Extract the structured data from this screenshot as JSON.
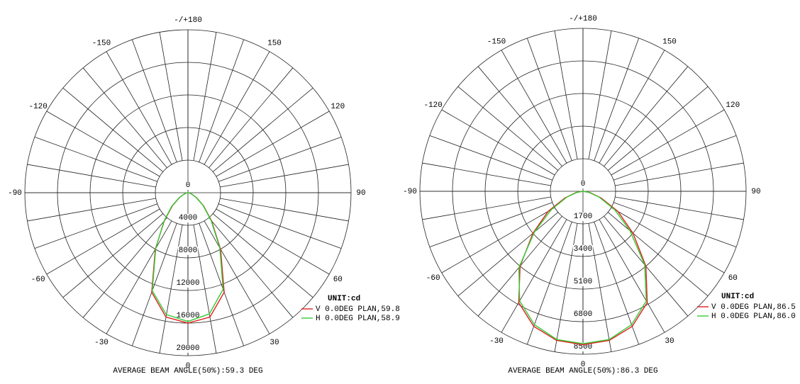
{
  "chart_data": [
    {
      "type": "polar",
      "x": [
        -90,
        -80,
        -70,
        -60,
        -50,
        -40,
        -30,
        -20,
        -10,
        0,
        10,
        20,
        30,
        40,
        50,
        60,
        70,
        80,
        90
      ],
      "series": [
        {
          "name": "V 0.0DEG PLAN,59.8",
          "color": "#e02020",
          "values": [
            0,
            150,
            500,
            1200,
            2500,
            4500,
            8000,
            13000,
            15500,
            16000,
            15500,
            13000,
            8000,
            4500,
            2500,
            1200,
            500,
            150,
            0
          ]
        },
        {
          "name": "H 0.0DEG PLAN,58.9",
          "color": "#33cc33",
          "values": [
            0,
            160,
            550,
            1300,
            2600,
            4600,
            7900,
            12800,
            15200,
            15800,
            15100,
            12600,
            7800,
            4400,
            2400,
            1100,
            450,
            140,
            0
          ]
        }
      ],
      "rlim": [
        0,
        20000
      ],
      "rticks": [
        0,
        4000,
        8000,
        12000,
        16000,
        20000
      ],
      "angle_ticks": [
        {
          "value": 180,
          "label": "-/+180"
        },
        150,
        120,
        90,
        60,
        30,
        0,
        -30,
        -60,
        -90,
        -120,
        -150
      ],
      "unit": "UNIT:cd",
      "footer": "AVERAGE BEAM ANGLE(50%):59.3 DEG"
    },
    {
      "type": "polar",
      "x": [
        -90,
        -80,
        -70,
        -60,
        -50,
        -40,
        -30,
        -20,
        -10,
        0,
        10,
        20,
        30,
        40,
        50,
        60,
        70,
        80,
        90
      ],
      "series": [
        {
          "name": "V 0.0DEG PLAN,86.5",
          "color": "#e02020",
          "values": [
            0,
            350,
            1000,
            2100,
            3400,
            5100,
            6700,
            7500,
            7900,
            8000,
            7900,
            7500,
            6700,
            5100,
            3400,
            2100,
            1000,
            350,
            0
          ]
        },
        {
          "name": "H 0.0DEG PLAN,86.0",
          "color": "#33cc33",
          "values": [
            0,
            300,
            900,
            1900,
            3300,
            5200,
            6600,
            7400,
            7850,
            7950,
            7850,
            7400,
            6600,
            5000,
            3200,
            1900,
            900,
            300,
            0
          ]
        }
      ],
      "rlim": [
        0,
        8500
      ],
      "rticks": [
        0,
        1700,
        3400,
        5100,
        6800,
        8500
      ],
      "angle_ticks": [
        {
          "value": 180,
          "label": "-/+180"
        },
        150,
        120,
        90,
        60,
        30,
        0,
        -30,
        -60,
        -90,
        -120,
        -150
      ],
      "unit": "UNIT:cd",
      "footer": "AVERAGE BEAM ANGLE(50%):86.3 DEG"
    }
  ]
}
